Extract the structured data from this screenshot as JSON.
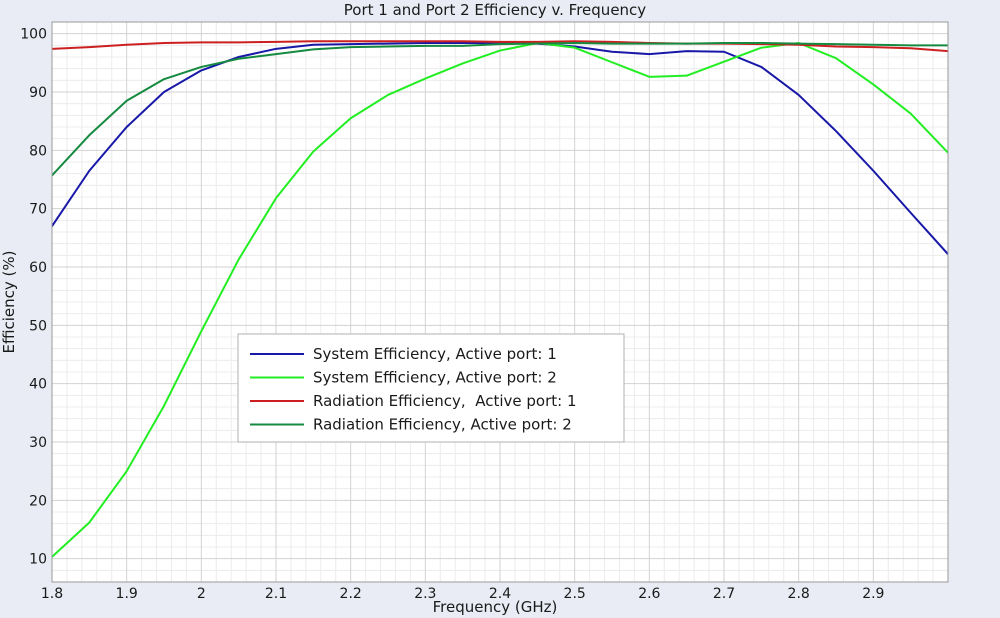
{
  "chart_data": {
    "type": "line",
    "title": "Port 1 and Port 2 Efficiency v. Frequency",
    "xlabel": "Frequency (GHz)",
    "ylabel": "Efficiency (%)",
    "xlim": [
      1.8,
      3.0
    ],
    "ylim": [
      6,
      102
    ],
    "x_ticks": [
      1.8,
      1.9,
      2.0,
      2.1,
      2.2,
      2.3,
      2.4,
      2.5,
      2.6,
      2.7,
      2.8,
      2.9
    ],
    "x_tick_labels": [
      "1.8",
      "1.9",
      "2",
      "2.1",
      "2.2",
      "2.3",
      "2.4",
      "2.5",
      "2.6",
      "2.7",
      "2.8",
      "2.9"
    ],
    "y_ticks": [
      10,
      20,
      30,
      40,
      50,
      60,
      70,
      80,
      90,
      100
    ],
    "y_tick_labels": [
      "10",
      "20",
      "30",
      "40",
      "50",
      "60",
      "70",
      "80",
      "90",
      "100"
    ],
    "grid": true,
    "legend_position": "center-left",
    "x": [
      1.8,
      1.85,
      1.9,
      1.95,
      2.0,
      2.05,
      2.1,
      2.15,
      2.2,
      2.25,
      2.3,
      2.35,
      2.4,
      2.45,
      2.5,
      2.55,
      2.6,
      2.65,
      2.7,
      2.75,
      2.8,
      2.85,
      2.9,
      2.95,
      3.0
    ],
    "series": [
      {
        "name": "System Efficiency, Active port: 1",
        "color": "#1818a8",
        "values": [
          67,
          76.5,
          84,
          90,
          93.7,
          96,
          97.4,
          98.1,
          98.2,
          98.3,
          98.4,
          98.4,
          98.4,
          98.3,
          97.8,
          96.9,
          96.5,
          97,
          96.9,
          94.3,
          89.5,
          83.3,
          76.5,
          69.3,
          62.2
        ]
      },
      {
        "name": "System Efficiency, Active port: 2",
        "color": "#22ee22",
        "values": [
          10.3,
          16.2,
          25,
          36.2,
          49,
          61.3,
          71.8,
          79.8,
          85.5,
          89.5,
          92.3,
          94.9,
          97.1,
          98.4,
          97.6,
          95.1,
          92.6,
          92.8,
          95.2,
          97.6,
          98.4,
          95.8,
          91.3,
          86.3,
          79.6
        ]
      },
      {
        "name": "Radiation Efficiency,  Active port: 1",
        "color": "#cc2020",
        "values": [
          97.4,
          97.7,
          98.1,
          98.4,
          98.5,
          98.5,
          98.6,
          98.7,
          98.7,
          98.7,
          98.7,
          98.7,
          98.6,
          98.6,
          98.7,
          98.6,
          98.4,
          98.3,
          98.3,
          98.2,
          98.1,
          97.8,
          97.7,
          97.5,
          97.0
        ]
      },
      {
        "name": "Radiation Efficiency, Active port: 2",
        "color": "#158a40",
        "values": [
          75.7,
          82.6,
          88.5,
          92.2,
          94.3,
          95.7,
          96.5,
          97.3,
          97.7,
          97.8,
          97.9,
          97.9,
          98.2,
          98.3,
          98.4,
          98.3,
          98.3,
          98.3,
          98.4,
          98.4,
          98.3,
          98.2,
          98.1,
          98.0,
          98.0
        ]
      }
    ]
  }
}
